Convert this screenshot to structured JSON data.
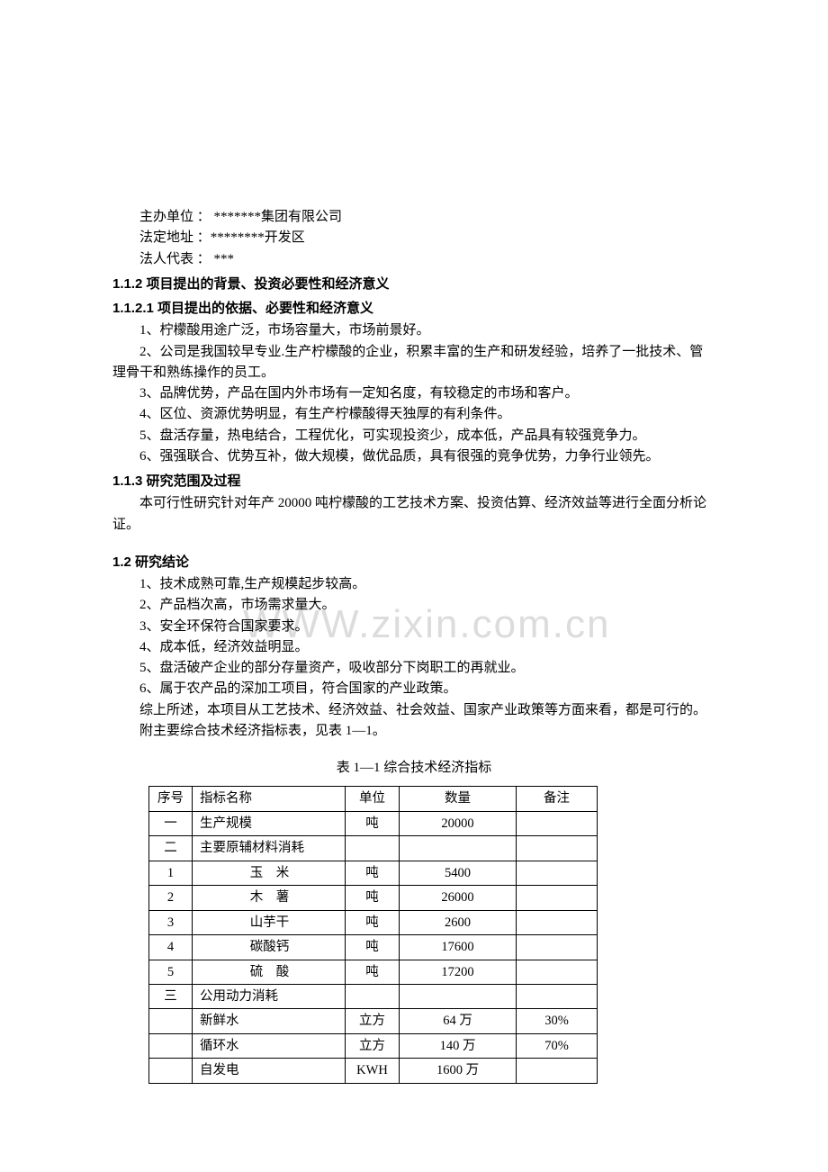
{
  "watermark": "WWW.zixin.com.cn",
  "info": {
    "line1_label": "主办单位 ：  ",
    "line1_val": "*******集团有限公司",
    "line2_label": "法定地址 ：",
    "line2_val": "********开发区",
    "line3_label": "法人代表 ：   ",
    "line3_val": "***"
  },
  "h112": "1.1.2  项目提出的背景、投资必要性和经济意义",
  "h1121": "1.1.2.1 项目提出的依据、必要性和经济意义",
  "p1": "1、柠檬酸用途广泛，市场容量大，市场前景好。",
  "p2": "2、公司是我国较早专业.生产柠檬酸的企业，积累丰富的生产和研发经验，培养了一批技术、管理骨干和熟练操作的员工。",
  "p3": "3、品牌优势，产品在国内外市场有一定知名度，有较稳定的市场和客户。",
  "p4": "4、区位、资源优势明显，有生产柠檬酸得天独厚的有利条件。",
  "p5": "5、盘活存量，热电结合，工程优化，可实现投资少，成本低，产品具有较强竞争力。",
  "p6": "6、强强联合、优势互补，做大规模，做优品质，具有很强的竞争优势，力争行业领先。",
  "h113": "1.1.3 研究范围及过程",
  "p113": "本可行性研究针对年产 20000 吨柠檬酸的工艺技术方案、投资估算、经济效益等进行全面分析论证。",
  "h12": "1.2 研究结论",
  "c1": "1、技术成熟可靠,生产规模起步较高。",
  "c2": "2、产品档次高，市场需求量大。",
  "c3": "3、安全环保符合国家要求。",
  "c4": "4、成本低，经济效益明显。",
  "c5": "5、盘活破产企业的部分存量资产，吸收部分下岗职工的再就业。",
  "c6": "6、属于农产品的深加工项目，符合国家的产业政策。",
  "summary": "综上所述，本项目从工艺技术、经济效益、社会效益、国家产业政策等方面来看，都是可行的。",
  "appendix": "附主要综合技术经济指标表，见表 1—1。",
  "table_title": "表 1—1      综合技术经济指标",
  "table": {
    "headers": {
      "seq": "序号",
      "name": "指标名称",
      "unit": "单位",
      "qty": "数量",
      "note": "备注"
    },
    "rows": [
      {
        "seq": "一",
        "name": "生产规模",
        "name_align": "left",
        "unit": "吨",
        "qty": "20000",
        "note": ""
      },
      {
        "seq": "二",
        "name": "主要原辅材料消耗",
        "name_align": "left",
        "unit": "",
        "qty": "",
        "note": ""
      },
      {
        "seq": "1",
        "name": "玉　米",
        "name_align": "center",
        "unit": "吨",
        "qty": "5400",
        "note": ""
      },
      {
        "seq": "2",
        "name": "木　薯",
        "name_align": "center",
        "unit": "吨",
        "qty": "26000",
        "note": ""
      },
      {
        "seq": "3",
        "name": "山芋干",
        "name_align": "center",
        "unit": "吨",
        "qty": "2600",
        "note": ""
      },
      {
        "seq": "4",
        "name": "碳酸钙",
        "name_align": "center",
        "unit": "吨",
        "qty": "17600",
        "note": ""
      },
      {
        "seq": "5",
        "name": "硫　酸",
        "name_align": "center",
        "unit": "吨",
        "qty": "17200",
        "note": ""
      },
      {
        "seq": "三",
        "name": "公用动力消耗",
        "name_align": "left",
        "unit": "",
        "qty": "",
        "note": ""
      },
      {
        "seq": "",
        "name": "新鲜水",
        "name_align": "left",
        "unit": "立方",
        "qty": "64 万",
        "note": "30%"
      },
      {
        "seq": "",
        "name": "循环水",
        "name_align": "left",
        "unit": "立方",
        "qty": "140 万",
        "note": "70%"
      },
      {
        "seq": "",
        "name": "自发电",
        "name_align": "left",
        "unit": "KWH",
        "qty": "1600 万",
        "note": ""
      }
    ]
  }
}
